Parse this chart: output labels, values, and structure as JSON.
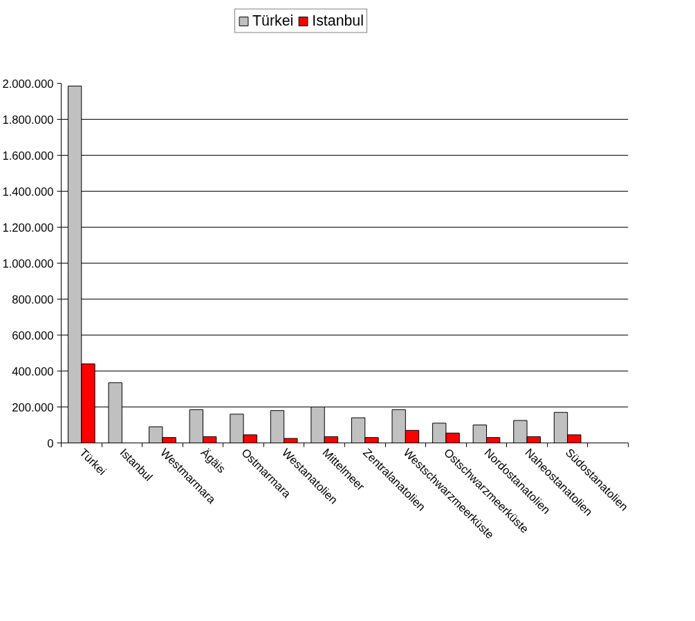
{
  "chart_data": {
    "type": "bar",
    "categories": [
      "Türkei",
      "Istanbul",
      "Westmarmara",
      "Ägäis",
      "Ostmarmara",
      "Westanatolien",
      "Mittelmeer",
      "Zentralanatolien",
      "Westschwarzmeerküste",
      "Ostschwarzmeerküste",
      "Nordostanatolien",
      "Naheostanatolien",
      "Südostanatolien",
      null
    ],
    "series": [
      {
        "name": "Türkei",
        "color": "#c0c0c0",
        "values": [
          1985000,
          335000,
          90000,
          185000,
          160000,
          180000,
          200000,
          140000,
          185000,
          110000,
          100000,
          125000,
          170000,
          null
        ]
      },
      {
        "name": "Istanbul",
        "color": "#ff0000",
        "values": [
          440000,
          null,
          30000,
          35000,
          45000,
          25000,
          35000,
          30000,
          70000,
          55000,
          30000,
          35000,
          45000,
          null
        ]
      }
    ],
    "ylim": [
      0,
      2000000
    ],
    "yticks": [
      {
        "value": 0,
        "label": "0"
      },
      {
        "value": 200000,
        "label": "200.000"
      },
      {
        "value": 400000,
        "label": "400.000"
      },
      {
        "value": 600000,
        "label": "600.000"
      },
      {
        "value": 800000,
        "label": "800.000"
      },
      {
        "value": 1000000,
        "label": "1.000.000"
      },
      {
        "value": 1200000,
        "label": "1.200.000"
      },
      {
        "value": 1400000,
        "label": "1.400.000"
      },
      {
        "value": 1600000,
        "label": "1.600.000"
      },
      {
        "value": 1800000,
        "label": "1.800.000"
      },
      {
        "value": 2000000,
        "label": "2.000.000"
      }
    ],
    "grid": "y",
    "legend": "top"
  }
}
